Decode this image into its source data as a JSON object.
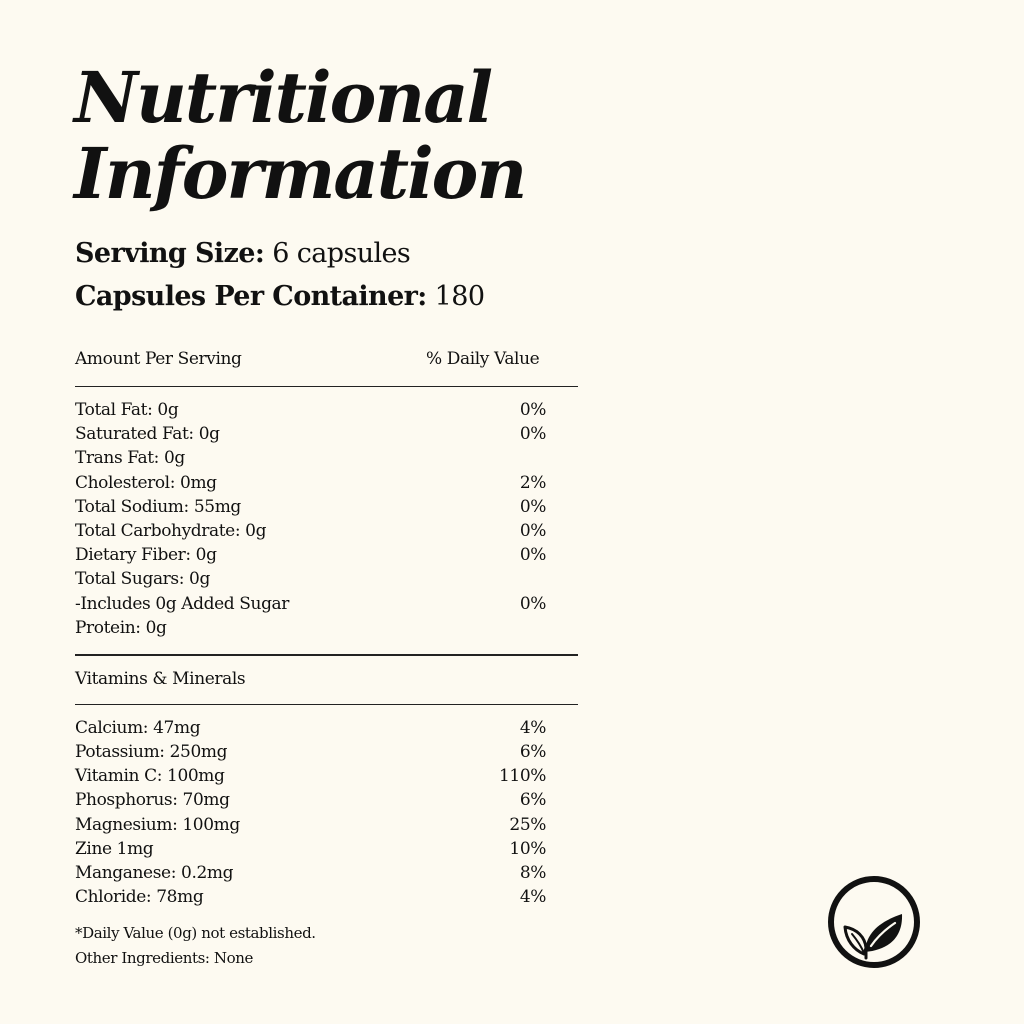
{
  "title": {
    "line1": "Nutritional",
    "line2": "Information"
  },
  "serving": {
    "size_label": "Serving Size:",
    "size_value": "6 capsules",
    "container_label": "Capsules Per Container:",
    "container_value": "180"
  },
  "table": {
    "header_left": "Amount Per Serving",
    "header_right": "% Daily Value",
    "rows": [
      {
        "label": "Total Fat: 0g",
        "pct": "0%"
      },
      {
        "label": "Saturated Fat: 0g",
        "pct": "0%"
      },
      {
        "label": "Trans Fat: 0g",
        "pct": ""
      },
      {
        "label": "Cholesterol: 0mg",
        "pct": "2%"
      },
      {
        "label": "Total Sodium: 55mg",
        "pct": "0%"
      },
      {
        "label": "Total Carbohydrate: 0g",
        "pct": "0%"
      },
      {
        "label": "Dietary Fiber: 0g",
        "pct": "0%"
      },
      {
        "label": "Total Sugars: 0g",
        "pct": ""
      },
      {
        "label": "-Includes 0g Added Sugar",
        "pct": "0%"
      },
      {
        "label": "Protein: 0g",
        "pct": ""
      }
    ],
    "vitamins_header": "Vitamins & Minerals",
    "vitamins": [
      {
        "label": "Calcium: 47mg",
        "pct": "4%"
      },
      {
        "label": "Potassium: 250mg",
        "pct": "6%"
      },
      {
        "label": "Vitamin C: 100mg",
        "pct": "110%"
      },
      {
        "label": "Phosphorus: 70mg",
        "pct": "6%"
      },
      {
        "label": "Magnesium: 100mg",
        "pct": "25%"
      },
      {
        "label": "Zine 1mg",
        "pct": "10%"
      },
      {
        "label": "Manganese: 0.2mg",
        "pct": "8%"
      },
      {
        "label": "Chloride: 78mg",
        "pct": "4%"
      }
    ]
  },
  "footnotes": {
    "daily_value_note": "*Daily Value (0g) not established.",
    "other_ingredients": "Other Ingredients: None"
  },
  "badge": {
    "icon": "leaf-icon"
  },
  "colors": {
    "background": "#fdfaf1",
    "text": "#111111"
  }
}
